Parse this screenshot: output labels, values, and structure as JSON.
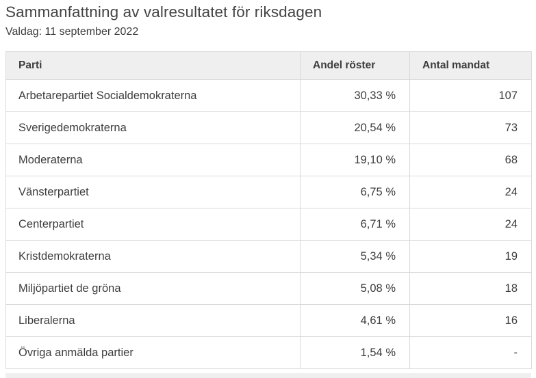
{
  "page": {
    "title": "Sammanfattning av valresultatet för riksdagen",
    "subtitle": "Valdag: 11 september 2022"
  },
  "table": {
    "columns": [
      "Parti",
      "Andel röster",
      "Antal mandat"
    ],
    "rows": [
      {
        "parti": "Arbetarepartiet Socialdemokraterna",
        "andel_roster": "30,33 %",
        "antal_mandat": "107"
      },
      {
        "parti": "Sverigedemokraterna",
        "andel_roster": "20,54 %",
        "antal_mandat": "73"
      },
      {
        "parti": "Moderaterna",
        "andel_roster": "19,10 %",
        "antal_mandat": "68"
      },
      {
        "parti": "Vänsterpartiet",
        "andel_roster": "6,75 %",
        "antal_mandat": "24"
      },
      {
        "parti": "Centerpartiet",
        "andel_roster": "6,71 %",
        "antal_mandat": "24"
      },
      {
        "parti": "Kristdemokraterna",
        "andel_roster": "5,34 %",
        "antal_mandat": "19"
      },
      {
        "parti": "Miljöpartiet de gröna",
        "andel_roster": "5,08 %",
        "antal_mandat": "18"
      },
      {
        "parti": "Liberalerna",
        "andel_roster": "4,61 %",
        "antal_mandat": "16"
      },
      {
        "parti": "Övriga anmälda partier",
        "andel_roster": "1,54 %",
        "antal_mandat": "-"
      }
    ]
  },
  "colors": {
    "header_bg": "#efefef",
    "border": "#d9d9d9",
    "text": "#3d3d3d",
    "title": "#444444"
  }
}
